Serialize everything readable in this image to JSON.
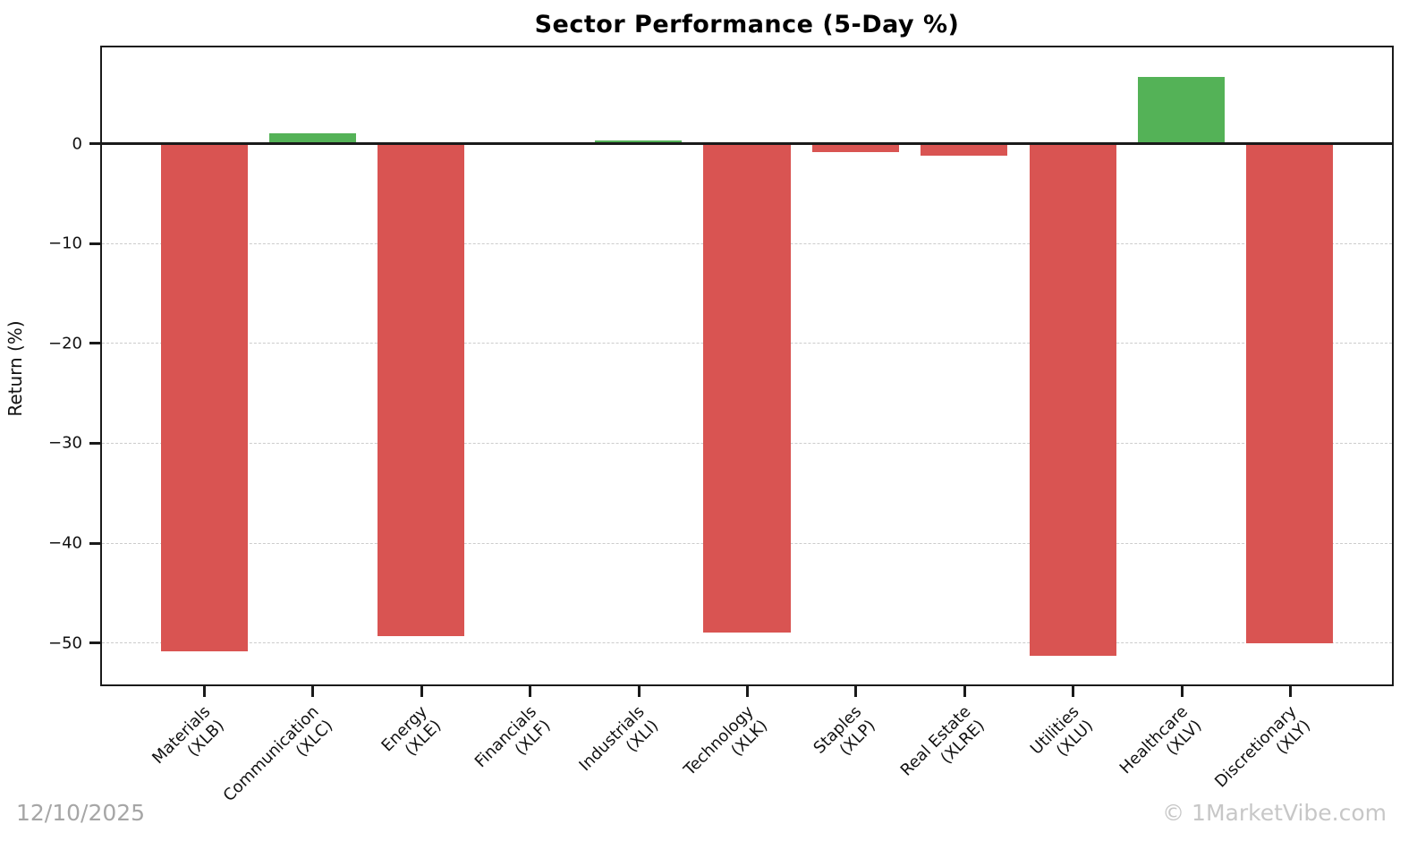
{
  "watermarks": {
    "date": "12/10/2025",
    "site": "© 1MarketVibe.com"
  },
  "chart_data": {
    "type": "bar",
    "title": "Sector Performance (5-Day %)",
    "xlabel": "",
    "ylabel": "Return (%)",
    "categories": [
      {
        "name": "Materials",
        "ticker": "(XLB)"
      },
      {
        "name": "Communication",
        "ticker": "(XLC)"
      },
      {
        "name": "Energy",
        "ticker": "(XLE)"
      },
      {
        "name": "Financials",
        "ticker": "(XLF)"
      },
      {
        "name": "Industrials",
        "ticker": "(XLI)"
      },
      {
        "name": "Technology",
        "ticker": "(XLK)"
      },
      {
        "name": "Staples",
        "ticker": "(XLP)"
      },
      {
        "name": "Real Estate",
        "ticker": "(XLRE)"
      },
      {
        "name": "Utilities",
        "ticker": "(XLU)"
      },
      {
        "name": "Healthcare",
        "ticker": "(XLV)"
      },
      {
        "name": "Discretionary",
        "ticker": "(XLY)"
      }
    ],
    "values": [
      -50.9,
      1.0,
      -49.4,
      -0.2,
      0.3,
      -49.0,
      -0.9,
      -1.2,
      -51.3,
      6.6,
      -50.1
    ],
    "ylim": [
      -54.2,
      9.6
    ],
    "yticks": [
      {
        "value": 0,
        "label": "0"
      },
      {
        "value": -10,
        "label": "−10"
      },
      {
        "value": -20,
        "label": "−20"
      },
      {
        "value": -30,
        "label": "−30"
      },
      {
        "value": -40,
        "label": "−40"
      },
      {
        "value": -50,
        "label": "−50"
      }
    ],
    "bar_width_fraction": 0.8,
    "x_slots_total": 11.88,
    "x_first_offset": 0.94,
    "grid": true,
    "grid_style": "dashed",
    "legend_position": "none",
    "positive_color": "#54b257",
    "negative_color": "#d95452",
    "zero_line_color": "#1a1a1a"
  }
}
